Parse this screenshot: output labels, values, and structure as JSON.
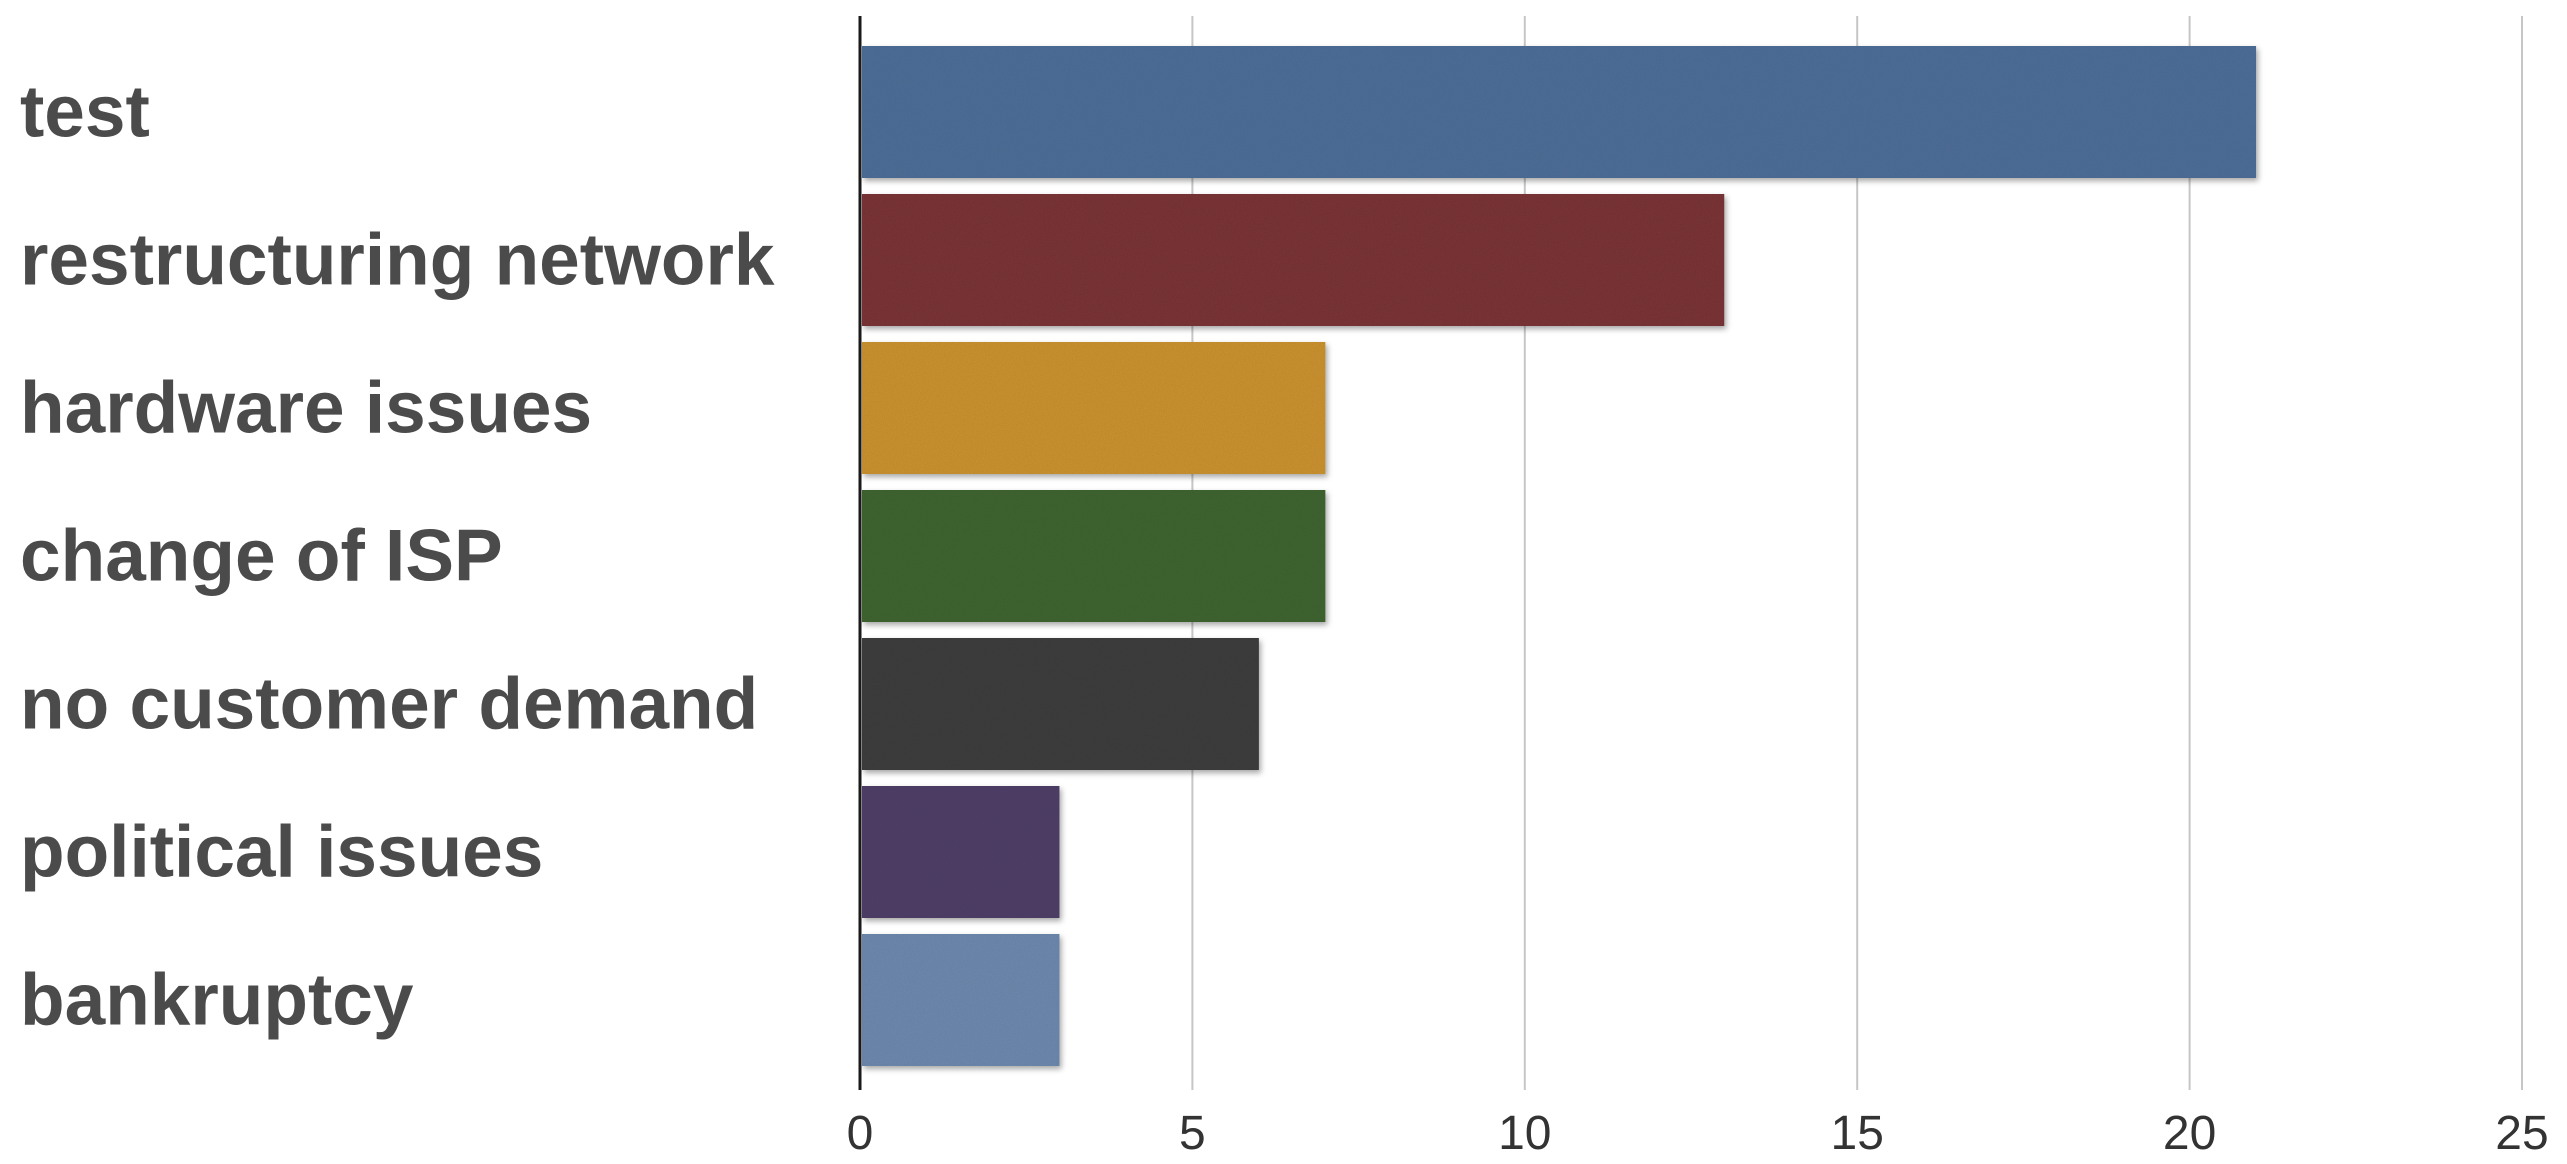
{
  "chart_data": {
    "type": "bar",
    "orientation": "horizontal",
    "title": "",
    "xlabel": "",
    "ylabel": "",
    "categories": [
      "test",
      "restructuring network",
      "hardware issues",
      "change of ISP",
      "no customer demand",
      "political issues",
      "bankruptcy"
    ],
    "values": [
      21,
      13,
      7,
      7,
      6,
      3,
      3
    ],
    "colors": [
      "#4e6e98",
      "#7a3336",
      "#cb922f",
      "#3f6431",
      "#3d3d3d",
      "#4f3f68",
      "#6d89ae"
    ],
    "xlim": [
      0,
      25
    ],
    "xticks": [
      0,
      5,
      10,
      15,
      20,
      25
    ],
    "grid": "vertical",
    "legend": "none"
  }
}
